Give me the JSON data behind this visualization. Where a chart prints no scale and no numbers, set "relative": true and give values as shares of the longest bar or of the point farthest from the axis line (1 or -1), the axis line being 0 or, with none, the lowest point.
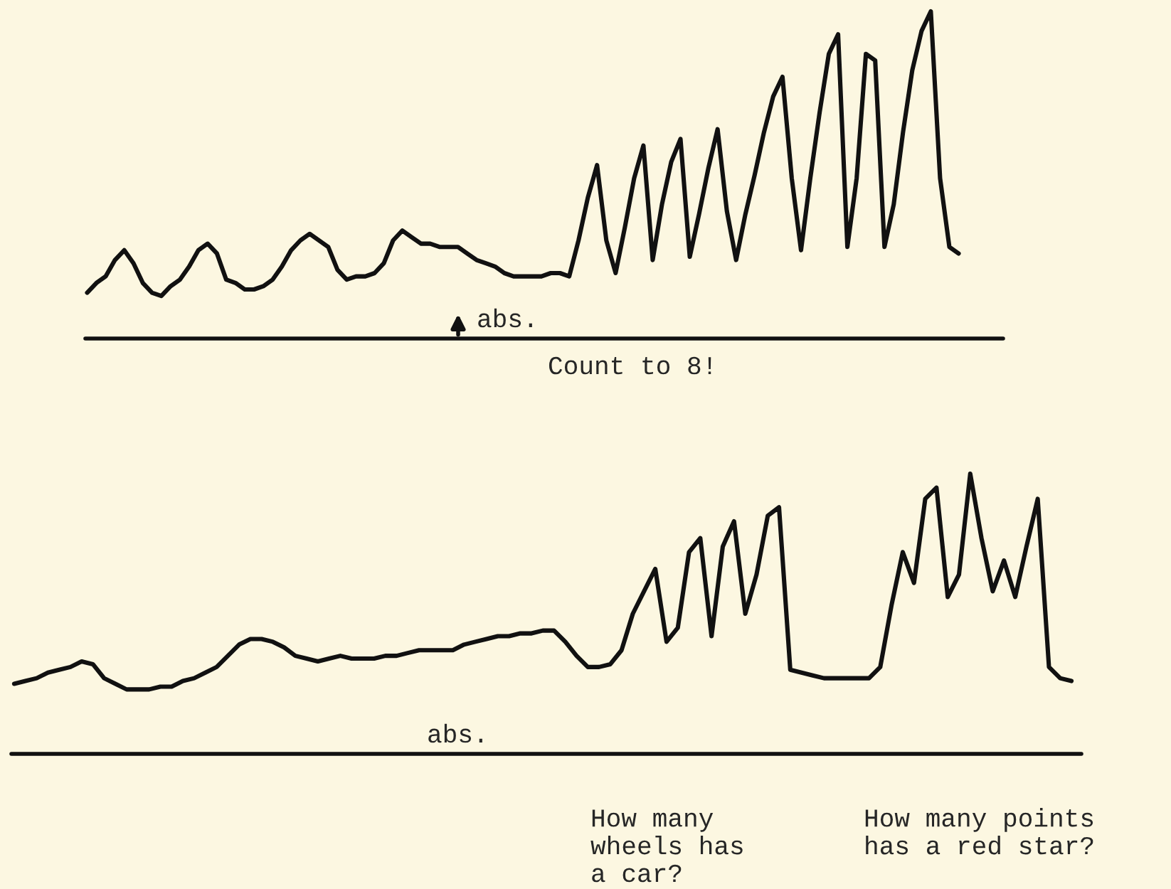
{
  "chart_data": [
    {
      "type": "line",
      "relative": true,
      "categories": [
        null,
        null,
        null,
        null,
        null,
        null,
        null,
        null,
        null,
        null,
        null,
        null,
        null,
        null,
        null,
        null,
        null,
        null,
        null,
        null,
        null,
        null,
        null,
        null,
        null,
        null,
        null,
        null,
        null,
        null,
        null,
        null,
        null,
        null,
        null,
        null,
        null,
        null,
        null,
        null,
        null,
        null,
        null,
        null,
        null,
        null,
        null,
        null,
        null,
        null,
        null,
        null,
        null,
        null,
        null,
        null,
        null,
        null,
        null,
        null,
        null,
        null,
        null,
        null,
        null,
        null,
        null,
        null,
        null,
        null,
        null,
        null,
        null,
        null,
        null,
        null,
        null,
        null,
        null,
        null,
        null,
        null,
        null,
        null,
        null,
        null,
        null,
        null,
        null,
        null,
        null,
        null,
        null,
        null,
        null
      ],
      "series": [
        {
          "color": "#111111",
          "values": [
            0.14,
            0.17,
            0.19,
            0.24,
            0.27,
            0.23,
            0.17,
            0.14,
            0.13,
            0.16,
            0.18,
            0.22,
            0.27,
            0.29,
            0.26,
            0.18,
            0.17,
            0.15,
            0.15,
            0.16,
            0.18,
            0.22,
            0.27,
            0.3,
            0.32,
            0.3,
            0.28,
            0.21,
            0.18,
            0.19,
            0.19,
            0.2,
            0.23,
            0.3,
            0.33,
            0.31,
            0.29,
            0.29,
            0.28,
            0.28,
            0.28,
            0.26,
            0.24,
            0.23,
            0.22,
            0.2,
            0.19,
            0.19,
            0.19,
            0.19,
            0.2,
            0.2,
            0.19,
            0.3,
            0.43,
            0.53,
            0.3,
            0.2,
            0.34,
            0.49,
            0.59,
            0.24,
            0.41,
            0.54,
            0.61,
            0.25,
            0.38,
            0.52,
            0.64,
            0.39,
            0.24,
            0.38,
            0.5,
            0.63,
            0.74,
            0.8,
            0.49,
            0.27,
            0.49,
            0.69,
            0.87,
            0.93,
            0.28,
            0.49,
            0.87,
            0.85,
            0.28,
            0.41,
            0.63,
            0.82,
            0.94,
            1.0,
            0.49,
            0.28,
            0.26
          ]
        }
      ],
      "annotations": [
        "abs.",
        "Count to 8!"
      ]
    },
    {
      "type": "line",
      "relative": true,
      "categories": [
        null,
        null,
        null,
        null,
        null,
        null,
        null,
        null,
        null,
        null,
        null,
        null,
        null,
        null,
        null,
        null,
        null,
        null,
        null,
        null,
        null,
        null,
        null,
        null,
        null,
        null,
        null,
        null,
        null,
        null,
        null,
        null,
        null,
        null,
        null,
        null,
        null,
        null,
        null,
        null,
        null,
        null,
        null,
        null,
        null,
        null,
        null,
        null,
        null,
        null,
        null,
        null,
        null,
        null,
        null,
        null,
        null,
        null,
        null,
        null,
        null,
        null,
        null,
        null,
        null,
        null,
        null,
        null,
        null,
        null,
        null,
        null,
        null,
        null,
        null,
        null,
        null,
        null,
        null,
        null,
        null,
        null,
        null,
        null,
        null,
        null,
        null,
        null,
        null,
        null,
        null,
        null,
        null,
        null,
        null
      ],
      "series": [
        {
          "color": "#111111",
          "values": [
            0.25,
            0.26,
            0.27,
            0.29,
            0.3,
            0.31,
            0.33,
            0.32,
            0.27,
            0.25,
            0.23,
            0.23,
            0.23,
            0.24,
            0.24,
            0.26,
            0.27,
            0.29,
            0.31,
            0.35,
            0.39,
            0.41,
            0.41,
            0.4,
            0.38,
            0.35,
            0.34,
            0.33,
            0.34,
            0.35,
            0.34,
            0.34,
            0.34,
            0.35,
            0.35,
            0.36,
            0.37,
            0.37,
            0.37,
            0.37,
            0.39,
            0.4,
            0.41,
            0.42,
            0.42,
            0.43,
            0.43,
            0.44,
            0.44,
            0.4,
            0.35,
            0.31,
            0.31,
            0.32,
            0.37,
            0.5,
            0.58,
            0.66,
            0.4,
            0.45,
            0.72,
            0.77,
            0.42,
            0.74,
            0.83,
            0.5,
            0.64,
            0.85,
            0.88,
            0.3,
            0.29,
            0.28,
            0.27,
            0.27,
            0.27,
            0.27,
            0.27,
            0.31,
            0.53,
            0.72,
            0.61,
            0.91,
            0.95,
            0.56,
            0.64,
            1.0,
            0.77,
            0.58,
            0.69,
            0.56,
            0.74,
            0.91,
            0.31,
            0.27,
            0.26
          ]
        }
      ],
      "annotations": [
        "abs.",
        "How many\nwheels has\na car?",
        "How many points\nhas a red star?"
      ]
    }
  ]
}
